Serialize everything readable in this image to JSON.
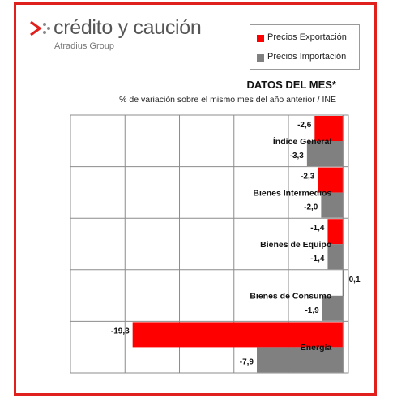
{
  "brand": {
    "name": "crédito y caución",
    "group": "Atradius Group",
    "mark_color": "#e0201c"
  },
  "chart_data": {
    "type": "bar",
    "orientation": "horizontal",
    "title": "DATOS DEL MES*",
    "subtitle": "% de variación sobre el mismo mes del año anterior / INE",
    "categories": [
      "Índice General",
      "Bienes Intermedios",
      "Bienes de Equipo",
      "Bienes de Consumo",
      "Energía"
    ],
    "series": [
      {
        "name": "Precios Exportación",
        "color": "#ff0000",
        "values": [
          -2.6,
          -2.3,
          -1.4,
          0.1,
          -19.3
        ],
        "labels": [
          "-2,6",
          "-2,3",
          "-1,4",
          "0,1",
          "-19,3"
        ]
      },
      {
        "name": "Precios Importación",
        "color": "#808080",
        "values": [
          -3.3,
          -2.0,
          -1.4,
          -1.9,
          -7.9
        ],
        "labels": [
          "-3,3",
          "-2,0",
          "-1,4",
          "-1,9",
          "-7,9"
        ]
      }
    ],
    "xlim": [
      -25,
      0.5
    ],
    "grid": true,
    "legend_position": "top-right"
  }
}
